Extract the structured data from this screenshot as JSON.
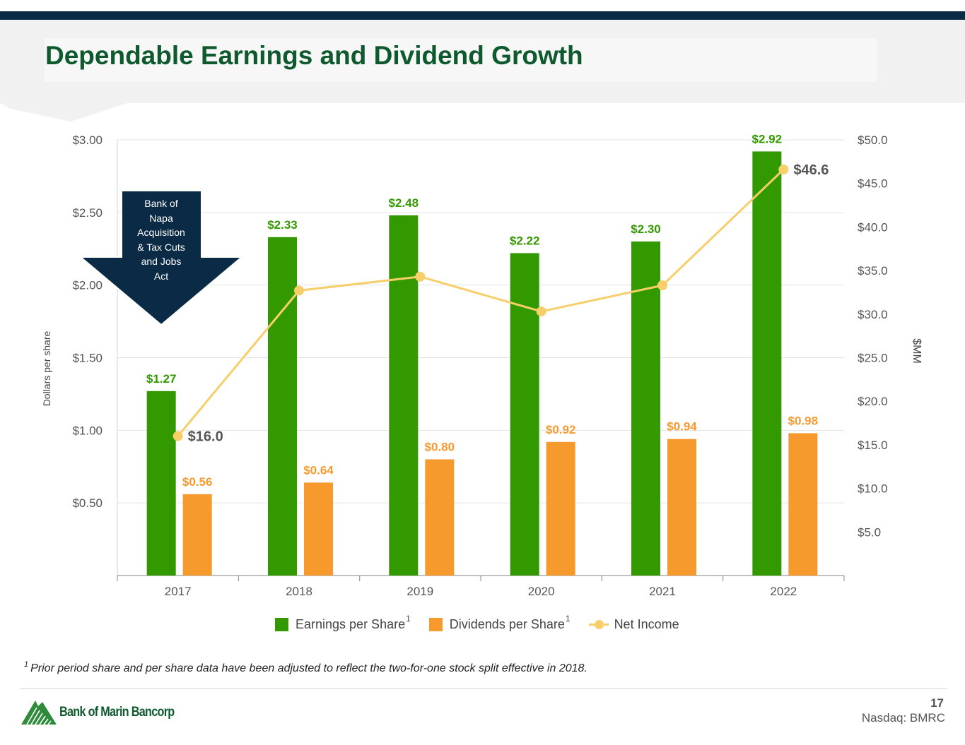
{
  "page": {
    "title": "Dependable Earnings and Dividend Growth",
    "footnote_mark": "1",
    "footnote": "Prior period share and per share data have been adjusted to reflect the two-for-one stock split effective in 2018.",
    "page_number": "17",
    "ticker": "Nasdaq: BMRC",
    "logo_text": "Bank of Marin Bancorp"
  },
  "callout": {
    "lines": [
      "Bank of",
      "Napa",
      "Acquisition",
      "& Tax Cuts",
      "and Jobs",
      "Act"
    ]
  },
  "colors": {
    "eps": "#339900",
    "dps": "#f79a2e",
    "net_income": "#f7cf6a",
    "title": "#0e5a2e",
    "navy": "#0b2a45"
  },
  "chart_data": {
    "type": "bar",
    "categories": [
      "2017",
      "2018",
      "2019",
      "2020",
      "2021",
      "2022"
    ],
    "series": [
      {
        "name": "Earnings per Share",
        "superscript": "1",
        "axis": "left",
        "values": [
          1.27,
          2.33,
          2.48,
          2.22,
          2.3,
          2.92
        ],
        "labels": [
          "$1.27",
          "$2.33",
          "$2.48",
          "$2.22",
          "$2.30",
          "$2.92"
        ]
      },
      {
        "name": "Dividends per Share",
        "superscript": "1",
        "axis": "left",
        "values": [
          0.56,
          0.64,
          0.8,
          0.92,
          0.94,
          0.98
        ],
        "labels": [
          "$0.56",
          "$0.64",
          "$0.80",
          "$0.92",
          "$0.94",
          "$0.98"
        ]
      },
      {
        "name": "Net Income",
        "type": "line",
        "axis": "right",
        "values": [
          16.0,
          32.7,
          34.3,
          30.3,
          33.3,
          46.6
        ],
        "labels": [
          "$16.0",
          "",
          "",
          "",
          "",
          "$46.6"
        ]
      }
    ],
    "ylabel_left": "Dollars per share",
    "ylabel_right": "$MM",
    "ylim_left": [
      0,
      3.0
    ],
    "ylim_right": [
      0,
      50.0
    ],
    "yticks_left": [
      "$0.50",
      "$1.00",
      "$1.50",
      "$2.00",
      "$2.50",
      "$3.00"
    ],
    "yticks_left_values": [
      0.5,
      1.0,
      1.5,
      2.0,
      2.5,
      3.0
    ],
    "yticks_right": [
      "$5.0",
      "$10.0",
      "$15.0",
      "$20.0",
      "$25.0",
      "$30.0",
      "$35.0",
      "$40.0",
      "$45.0",
      "$50.0"
    ],
    "yticks_right_values": [
      5,
      10,
      15,
      20,
      25,
      30,
      35,
      40,
      45,
      50
    ],
    "grid": true,
    "legend": "bottom"
  }
}
